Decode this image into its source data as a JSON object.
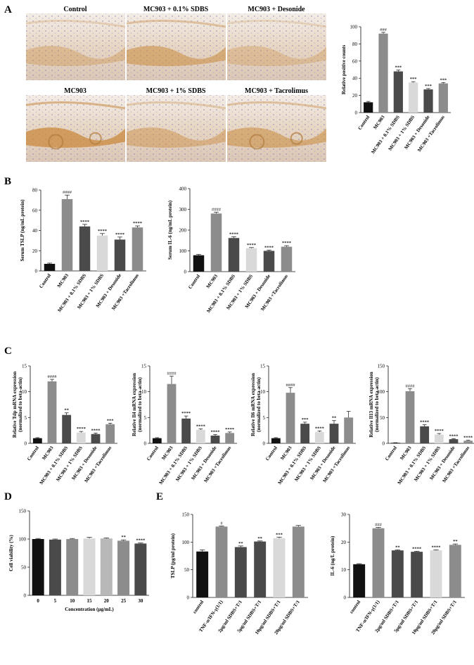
{
  "panels": {
    "A": "A",
    "B": "B",
    "C": "C",
    "D": "D",
    "E": "E"
  },
  "micrographs": [
    {
      "label": "Control"
    },
    {
      "label": "MC903 + 0.1% SDBS"
    },
    {
      "label": "MC903 + Desonide"
    },
    {
      "label": "MC903"
    },
    {
      "label": "MC903 + 1% SDBS"
    },
    {
      "label": "MC903 + Tacrolimus"
    }
  ],
  "colors": {
    "black": "#111111",
    "dark": "#4a4a4a",
    "mid": "#8c8c8c",
    "light": "#b8b8b8",
    "pale": "#d9d9d9",
    "tissue": "#efe4d8",
    "stain": "#c98a3c"
  },
  "chart_data": [
    {
      "id": "A",
      "type": "bar",
      "ylabel": "Relative positive counts",
      "ylim": [
        0,
        100
      ],
      "yticks": [
        0,
        20,
        40,
        60,
        80,
        100
      ],
      "categories": [
        "Control",
        "MC903",
        "MC903 + 0.1% SDBS",
        "MC903 + 1% SDBS",
        "MC903 + Desonide",
        "MC903 +Tacrolimus"
      ],
      "values": [
        12,
        92,
        48,
        35,
        27,
        34
      ],
      "errors": [
        1,
        1.5,
        1.5,
        1,
        1,
        1
      ],
      "significance": [
        "",
        "###",
        "***",
        "***",
        "***",
        "***"
      ]
    },
    {
      "id": "B1",
      "type": "bar",
      "ylabel": "Serum TSLP (ng/mL protein)",
      "ylim": [
        0,
        80
      ],
      "yticks": [
        0,
        20,
        40,
        60,
        80
      ],
      "categories": [
        "Control",
        "MC903",
        "MC903 + 0.1% SDBS",
        "MC903 + 1% SDBS",
        "MC903 + Desonide",
        "MC903 +Tacrolimus"
      ],
      "values": [
        7,
        71,
        44,
        35,
        31,
        43
      ],
      "errors": [
        0.7,
        4,
        2,
        2,
        2.5,
        1.5
      ],
      "significance": [
        "",
        "####",
        "****",
        "****",
        "****",
        "****"
      ]
    },
    {
      "id": "B2",
      "type": "bar",
      "ylabel": "Serum IL-6 (ng/mL protein)",
      "ylim": [
        0,
        400
      ],
      "yticks": [
        0,
        100,
        200,
        300,
        400
      ],
      "categories": [
        "Control",
        "MC903",
        "MC903 + 0.1% SDBS",
        "MC903 + 1% SDBS",
        "MC903 + Desonide",
        "MC903 +Tacrolimus"
      ],
      "values": [
        79,
        280,
        162,
        113,
        100,
        120
      ],
      "errors": [
        4,
        6,
        6,
        3,
        4,
        5
      ],
      "significance": [
        "",
        "####",
        "****",
        "****",
        "****",
        "****"
      ]
    },
    {
      "id": "C1",
      "type": "bar",
      "ylabel": "Relative Tslp mRNA expression (normalized to beta-actin)",
      "ylim": [
        0,
        15
      ],
      "yticks": [
        0,
        5,
        10,
        15
      ],
      "categories": [
        "Control",
        "MC903",
        "MC903 + 0.1% SDBS",
        "MC903 + 1% SDBS",
        "MC903 + Desonide",
        "MC903 +Tacrolimus"
      ],
      "values": [
        1,
        12,
        5.5,
        2.1,
        1.8,
        3.7
      ],
      "errors": [
        0.1,
        0.4,
        0.4,
        0.2,
        0.2,
        0.2
      ],
      "significance": [
        "",
        "####",
        "**",
        "****",
        "****",
        "***"
      ]
    },
    {
      "id": "C2",
      "type": "bar",
      "ylabel": "Relative Il4 mRNA expression (normalized to beta-actin)",
      "ylim": [
        0,
        15
      ],
      "yticks": [
        0,
        5,
        10,
        15
      ],
      "categories": [
        "Control",
        "MC903",
        "MC903 + 0.1% SDBS",
        "MC903 + 1% SDBS",
        "MC903 + Desonide",
        "MC903 +Tacrolimus"
      ],
      "values": [
        1,
        11.5,
        4.8,
        2.6,
        1.5,
        2.0
      ],
      "errors": [
        0.1,
        1.5,
        0.5,
        0.2,
        0.2,
        0.2
      ],
      "significance": [
        "",
        "####",
        "****",
        "****",
        "****",
        "****"
      ]
    },
    {
      "id": "C3",
      "type": "bar",
      "ylabel": "Relative Il6 mRNA expression (normalized to beta-actin)",
      "ylim": [
        0,
        15
      ],
      "yticks": [
        0,
        5,
        10,
        15
      ],
      "categories": [
        "Control",
        "MC903",
        "MC903 + 0.1% SDBS",
        "MC903 + 1% SDBS",
        "MC903 + Desonide",
        "MC903 +Tacrolimus"
      ],
      "values": [
        1,
        9.8,
        3.8,
        2.2,
        3.8,
        5.0
      ],
      "errors": [
        0.1,
        1.0,
        0.3,
        0.2,
        0.6,
        1.2
      ],
      "significance": [
        "",
        "####",
        "***",
        "****",
        "**",
        ""
      ]
    },
    {
      "id": "C4",
      "type": "bar",
      "ylabel": "Relative Il13 mRNA expression (normalized to beta-actin)",
      "ylim": [
        0,
        150
      ],
      "yticks": [
        0,
        50,
        100,
        150
      ],
      "categories": [
        "Control",
        "MC903",
        "MC903 + 0.1% SDBS",
        "MC903 + 1% SDBS",
        "MC903 + Desonide",
        "MC903 +Tacrolimus"
      ],
      "values": [
        1,
        101,
        33,
        17,
        8,
        5
      ],
      "errors": [
        0.2,
        5,
        3,
        2,
        1,
        1
      ],
      "significance": [
        "",
        "####",
        "****",
        "****",
        "****",
        "****"
      ]
    },
    {
      "id": "D",
      "type": "bar",
      "ylabel": "Cell viability (%)",
      "xlabel": "Concentration (μg/mL)",
      "ylim": [
        0,
        150
      ],
      "yticks": [
        0,
        50,
        100,
        150
      ],
      "categories": [
        "0",
        "5",
        "10",
        "15",
        "20",
        "25",
        "30"
      ],
      "values": [
        100,
        99,
        100,
        101,
        101,
        97,
        92
      ],
      "errors": [
        1,
        1,
        1,
        2,
        1,
        1.5,
        1
      ],
      "significance": [
        "",
        "",
        "",
        "",
        "",
        "**",
        "****"
      ]
    },
    {
      "id": "E1",
      "type": "bar",
      "ylabel": "TSLP (pg/ml protein)",
      "ylim": [
        0,
        150
      ],
      "yticks": [
        0,
        50,
        100,
        150
      ],
      "categories": [
        "control",
        "TNF-α/IFN-γ(1/1)",
        "2μg/ml SDBS+T/1",
        "5μg/ml SDBS+T/1",
        "10μg/ml SDBS+T/1",
        "20μg/ml SDBS+T/1"
      ],
      "values": [
        83,
        128,
        91,
        101,
        107,
        128
      ],
      "errors": [
        3,
        1,
        2,
        1,
        2,
        2
      ],
      "significance": [
        "",
        "#",
        "**",
        "**",
        "***",
        ""
      ]
    },
    {
      "id": "E2",
      "type": "bar",
      "ylabel": "IL-6 (ng/L protein)",
      "ylim": [
        0,
        30
      ],
      "yticks": [
        0,
        10,
        20,
        30
      ],
      "categories": [
        "control",
        "TNF-α/IFN-γ(1/1)",
        "2μg/ml SDBS+T/1",
        "5μg/ml SDBS+T/1",
        "10μg/ml SDBS+T/1",
        "20μg/ml SDBS+T/1"
      ],
      "values": [
        12,
        25,
        17,
        16.5,
        17,
        19
      ],
      "errors": [
        0.2,
        0.3,
        0.2,
        0.2,
        0.2,
        0.3
      ],
      "significance": [
        "",
        "###",
        "**",
        "****",
        "****",
        "**"
      ]
    }
  ]
}
